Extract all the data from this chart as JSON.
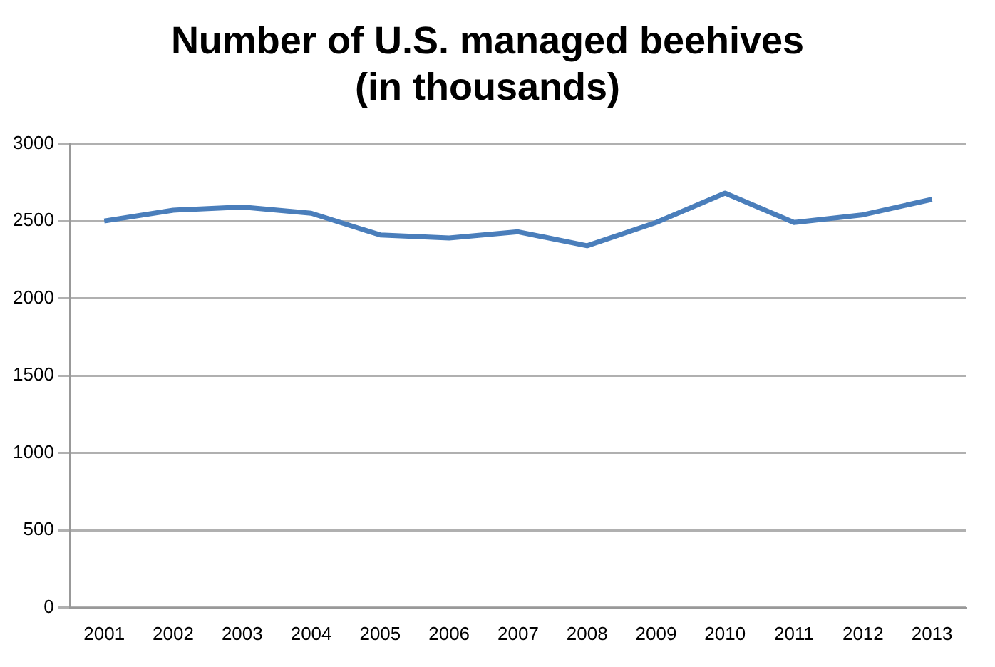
{
  "chart_data": {
    "type": "line",
    "title": [
      "Number of U.S. managed beehives",
      "(in thousands)"
    ],
    "categories": [
      "2001",
      "2002",
      "2003",
      "2004",
      "2005",
      "2006",
      "2007",
      "2008",
      "2009",
      "2010",
      "2011",
      "2012",
      "2013"
    ],
    "series": [
      {
        "color": "#4a7ebb",
        "values": [
          2500,
          2570,
          2590,
          2550,
          2410,
          2390,
          2430,
          2340,
          2490,
          2680,
          2490,
          2540,
          2640
        ]
      }
    ],
    "ylim": [
      0,
      3000
    ],
    "yticks": [
      0,
      500,
      1000,
      1500,
      2000,
      2500,
      3000
    ],
    "grid": "y",
    "legend": false,
    "marker": "none",
    "line_style": "solid"
  }
}
